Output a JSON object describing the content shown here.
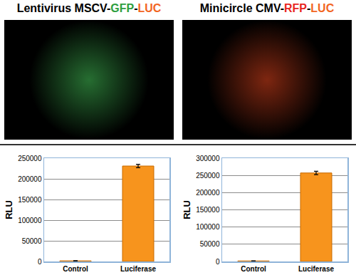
{
  "chart_data": [
    {
      "type": "bar",
      "title": "Lentivirus MSCV-GFP-LUC",
      "ylabel": "RLU",
      "categories": [
        "Control",
        "Luciferase"
      ],
      "values": [
        1500,
        231000
      ],
      "errors": [
        300,
        4000
      ],
      "color": "#f7941d",
      "ylim": [
        0,
        250000
      ],
      "yticks": [
        0,
        50000,
        100000,
        150000,
        200000,
        250000
      ],
      "grid": true
    },
    {
      "type": "bar",
      "title": "Minicircle CMV-RFP-LUC",
      "ylabel": "RLU",
      "categories": [
        "Control",
        "Luciferase"
      ],
      "values": [
        1500,
        257000
      ],
      "errors": [
        300,
        5000
      ],
      "color": "#f7941d",
      "ylim": [
        0,
        300000
      ],
      "yticks": [
        0,
        50000,
        100000,
        150000,
        200000,
        250000,
        300000
      ],
      "grid": true
    }
  ]
}
